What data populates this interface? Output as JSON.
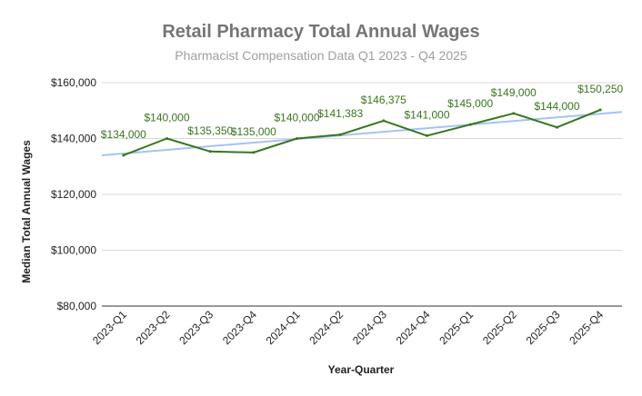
{
  "chart_data": {
    "type": "line",
    "title": "Retail Pharmacy Total Annual Wages",
    "subtitle": "Pharmacist Compensation Data Q1 2023 - Q4 2025",
    "xlabel": "Year-Quarter",
    "ylabel": "Median Total Annual Wages",
    "categories": [
      "2023-Q1",
      "2023-Q2",
      "2023-Q3",
      "2023-Q4",
      "2024-Q1",
      "2024-Q2",
      "2024-Q3",
      "2024-Q4",
      "2025-Q1",
      "2025-Q2",
      "2025-Q3",
      "2025-Q4"
    ],
    "series": [
      {
        "values": [
          134000,
          140000,
          135350,
          135000,
          140000,
          141383,
          146375,
          141000,
          145000,
          149000,
          144000,
          150250
        ],
        "data_labels": [
          "$134,000",
          "$140,000",
          "$135,350",
          "$135,000",
          "$140,000",
          "$141,383",
          "$146,375",
          "$141,000",
          "$145,000",
          "$149,000",
          "$144,000",
          "$150,250"
        ],
        "color": "#38761d"
      }
    ],
    "trendline": {
      "start": 134000,
      "end": 149500,
      "color": "#a4c2f4"
    },
    "ylim": [
      80000,
      160000
    ],
    "yticks": [
      80000,
      100000,
      120000,
      140000,
      160000
    ],
    "ytick_labels": [
      "$80,000",
      "$100,000",
      "$120,000",
      "$140,000",
      "$160,000"
    ],
    "grid": true,
    "legend": "none"
  }
}
